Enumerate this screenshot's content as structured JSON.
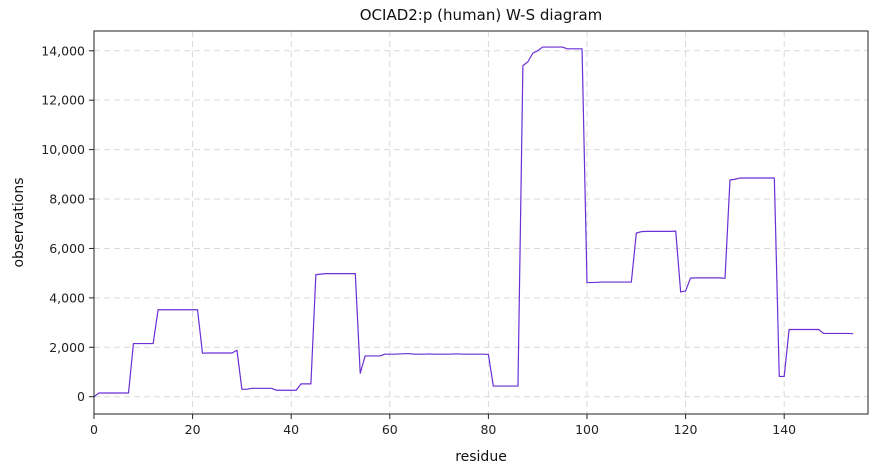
{
  "chart_data": {
    "type": "line",
    "title": "OCIAD2:p (human) W-S diagram",
    "xlabel": "residue",
    "ylabel": "observations",
    "xlim": [
      0,
      157
    ],
    "ylim": [
      -700,
      14800
    ],
    "xticks": [
      0,
      20,
      40,
      60,
      80,
      100,
      120,
      140
    ],
    "xtick_labels": [
      "0",
      "20",
      "40",
      "60",
      "80",
      "100",
      "120",
      "140"
    ],
    "yticks": [
      0,
      2000,
      4000,
      6000,
      8000,
      10000,
      12000,
      14000
    ],
    "ytick_labels": [
      "0",
      "2,000",
      "4,000",
      "6,000",
      "8,000",
      "10,000",
      "12,000",
      "14,000"
    ],
    "grid": true,
    "line_color": "#6a2fd6",
    "series": [
      {
        "x": [
          0,
          1,
          2,
          3,
          4,
          5,
          6,
          7,
          8,
          9,
          10,
          11,
          12,
          13,
          14,
          15,
          16,
          17,
          18,
          19,
          20,
          21,
          22,
          23,
          24,
          25,
          26,
          27,
          28,
          29,
          30,
          31,
          32,
          33,
          34,
          35,
          36,
          37,
          38,
          39,
          40,
          41,
          42,
          43,
          44,
          45,
          46,
          47,
          48,
          49,
          50,
          51,
          52,
          53,
          54,
          55,
          56,
          57,
          58,
          59,
          60,
          61,
          62,
          63,
          64,
          65,
          66,
          67,
          68,
          69,
          70,
          71,
          72,
          73,
          74,
          75,
          76,
          77,
          78,
          79,
          80,
          81,
          82,
          83,
          84,
          85,
          86,
          87,
          88,
          89,
          90,
          91,
          92,
          93,
          94,
          95,
          96,
          97,
          98,
          99,
          100,
          101,
          102,
          103,
          104,
          105,
          106,
          107,
          108,
          109,
          110,
          111,
          112,
          113,
          114,
          115,
          116,
          117,
          118,
          119,
          120,
          121,
          122,
          123,
          124,
          125,
          126,
          127,
          128,
          129,
          130,
          131,
          132,
          133,
          134,
          135,
          136,
          137,
          138,
          139,
          140,
          141,
          142,
          143,
          144,
          145,
          146,
          147,
          148,
          149,
          150,
          151,
          152,
          153,
          154
        ],
        "y": [
          0,
          150,
          150,
          150,
          150,
          150,
          150,
          150,
          2150,
          2150,
          2150,
          2150,
          2150,
          3520,
          3520,
          3520,
          3520,
          3520,
          3520,
          3520,
          3520,
          3520,
          1760,
          1770,
          1770,
          1770,
          1770,
          1770,
          1770,
          1880,
          300,
          300,
          340,
          340,
          340,
          340,
          340,
          260,
          260,
          260,
          260,
          260,
          520,
          520,
          520,
          4940,
          4960,
          4980,
          4980,
          4980,
          4980,
          4980,
          4980,
          4980,
          950,
          1650,
          1650,
          1650,
          1650,
          1720,
          1720,
          1720,
          1730,
          1740,
          1740,
          1720,
          1720,
          1720,
          1730,
          1720,
          1720,
          1720,
          1720,
          1730,
          1730,
          1720,
          1720,
          1720,
          1720,
          1720,
          1710,
          430,
          430,
          430,
          430,
          430,
          430,
          13400,
          13550,
          13900,
          14000,
          14150,
          14150,
          14150,
          14150,
          14150,
          14080,
          14080,
          14080,
          14080,
          4620,
          4620,
          4630,
          4640,
          4640,
          4640,
          4640,
          4640,
          4640,
          4640,
          6620,
          6680,
          6690,
          6690,
          6690,
          6690,
          6690,
          6690,
          6700,
          4240,
          4280,
          4800,
          4810,
          4810,
          4810,
          4810,
          4810,
          4810,
          4790,
          8770,
          8800,
          8850,
          8850,
          8850,
          8850,
          8850,
          8850,
          8850,
          8850,
          820,
          820,
          2720,
          2720,
          2720,
          2720,
          2720,
          2720,
          2720,
          2560,
          2560,
          2560,
          2560,
          2560,
          2560,
          2550
        ]
      }
    ]
  }
}
